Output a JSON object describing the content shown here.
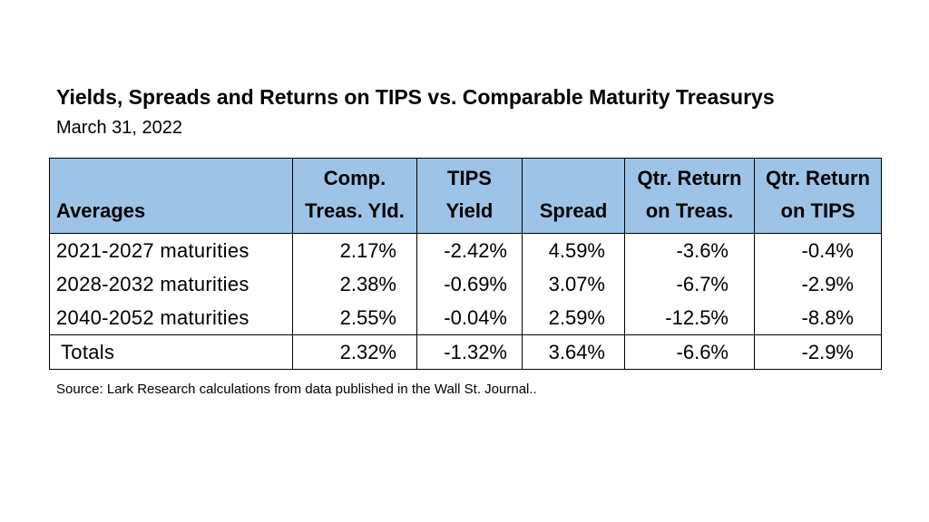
{
  "title": "Yields, Spreads and Returns on TIPS vs. Comparable Maturity Treasurys",
  "subtitle": "March 31, 2022",
  "table": {
    "headers": [
      {
        "line1": "",
        "line2": "Averages"
      },
      {
        "line1": "Comp.",
        "line2": "Treas. Yld."
      },
      {
        "line1": "TIPS",
        "line2": "Yield"
      },
      {
        "line1": "",
        "line2": "Spread"
      },
      {
        "line1": "Qtr. Return",
        "line2": "on Treas."
      },
      {
        "line1": "Qtr. Return",
        "line2": "on TIPS"
      }
    ],
    "rows": [
      {
        "label": "2021-2027 maturities",
        "values": [
          "2.17%",
          "-2.42%",
          "4.59%",
          "-3.6%",
          "-0.4%"
        ]
      },
      {
        "label": "2028-2032 maturities",
        "values": [
          "2.38%",
          "-0.69%",
          "3.07%",
          "-6.7%",
          "-2.9%"
        ]
      },
      {
        "label": "2040-2052 maturities",
        "values": [
          "2.55%",
          "-0.04%",
          "2.59%",
          "-12.5%",
          "-8.8%"
        ]
      }
    ],
    "total": {
      "label": "Totals",
      "values": [
        "2.32%",
        "-1.32%",
        "3.64%",
        "-6.6%",
        "-2.9%"
      ]
    }
  },
  "source": "Source:  Lark Research calculations from data published in the Wall St. Journal..",
  "colors": {
    "header_background": "#9dc3e6",
    "border": "#000000",
    "text": "#000000"
  }
}
